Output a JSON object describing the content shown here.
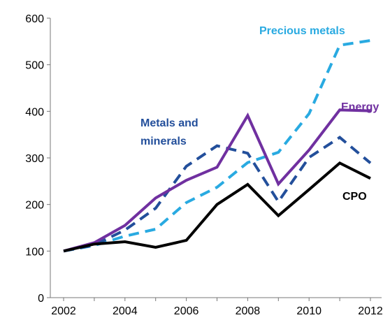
{
  "chart_data": {
    "type": "line",
    "title": "",
    "xlabel": "",
    "ylabel": "",
    "x": [
      2002,
      2003,
      2004,
      2005,
      2006,
      2007,
      2008,
      2009,
      2010,
      2011,
      2012
    ],
    "xlim": [
      2002,
      2012
    ],
    "ylim": [
      0,
      600
    ],
    "x_ticks": [
      "2002",
      "2004",
      "2006",
      "2008",
      "2010",
      "2012"
    ],
    "y_ticks": [
      "0",
      "100",
      "200",
      "300",
      "400",
      "500",
      "600"
    ],
    "grid": false,
    "legend": "none",
    "series": [
      {
        "key": "precious",
        "name": "Precious metals",
        "style": "dashed",
        "color": "#29aae1",
        "values": [
          100,
          112,
          132,
          147,
          204,
          237,
          290,
          312,
          395,
          542,
          552
        ]
      },
      {
        "key": "metals",
        "name": "Metals and minerals",
        "style": "dashed",
        "color": "#234f9b",
        "values": [
          100,
          113,
          145,
          192,
          282,
          326,
          310,
          206,
          301,
          344,
          289
        ]
      },
      {
        "key": "energy",
        "name": "Energy",
        "style": "solid",
        "color": "#7030a0",
        "values": [
          100,
          118,
          155,
          214,
          252,
          280,
          391,
          244,
          317,
          403,
          401
        ]
      },
      {
        "key": "cpo",
        "name": "CPO",
        "style": "solid",
        "color": "#000000",
        "values": [
          100,
          115,
          120,
          108,
          123,
          200,
          243,
          176,
          232,
          289,
          256
        ]
      }
    ],
    "labels": {
      "precious": "Precious metals",
      "metals_line1": "Metals and",
      "metals_line2": "minerals",
      "energy": "Energy",
      "cpo": "CPO"
    }
  }
}
